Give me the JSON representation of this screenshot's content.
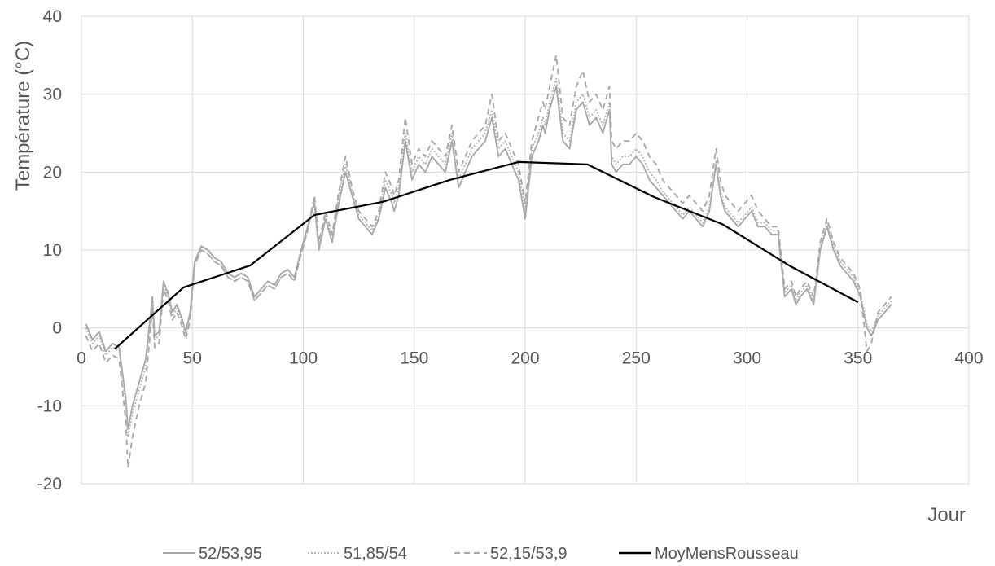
{
  "chart_data": {
    "type": "line",
    "title": "",
    "xlabel": "Jour",
    "ylabel": "Température (°C)",
    "xlim": [
      0,
      400
    ],
    "ylim": [
      -20,
      40
    ],
    "x_ticks": [
      0,
      50,
      100,
      150,
      200,
      250,
      300,
      350,
      400
    ],
    "y_ticks": [
      -20,
      -10,
      0,
      10,
      20,
      30,
      40
    ],
    "grid": true,
    "legend_position": "bottom",
    "series": [
      {
        "name": "52/53,95",
        "color": "#a6a6a6",
        "style": "solid",
        "x": [
          2,
          5,
          8,
          11,
          14,
          17,
          20,
          21,
          23,
          26,
          29,
          32,
          33,
          35,
          37,
          39,
          41,
          43,
          45,
          47,
          49,
          51,
          54,
          57,
          60,
          63,
          66,
          69,
          72,
          75,
          78,
          81,
          84,
          87,
          90,
          93,
          96,
          99,
          102,
          105,
          107,
          110,
          113,
          116,
          119,
          122,
          125,
          128,
          131,
          134,
          137,
          140,
          141,
          143,
          146,
          149,
          152,
          155,
          158,
          161,
          164,
          167,
          170,
          173,
          176,
          179,
          182,
          185,
          188,
          191,
          194,
          197,
          200,
          203,
          206,
          208,
          209,
          211,
          214,
          217,
          220,
          223,
          226,
          229,
          232,
          235,
          238,
          239,
          241,
          244,
          247,
          250,
          253,
          256,
          259,
          262,
          265,
          268,
          271,
          274,
          277,
          280,
          283,
          286,
          288,
          290,
          293,
          296,
          299,
          302,
          305,
          308,
          311,
          314,
          317,
          320,
          322,
          324,
          327,
          330,
          333,
          336,
          339,
          342,
          345,
          348,
          351,
          354,
          356,
          359,
          362,
          365
        ],
        "y": [
          0.5,
          -1.5,
          -0.5,
          -3,
          -2,
          -2.5,
          -9,
          -13,
          -10,
          -7,
          -4,
          4,
          -1,
          -0.5,
          6,
          4.5,
          2,
          3,
          1.5,
          -0.5,
          2,
          8.5,
          10.5,
          10,
          9,
          8.5,
          7,
          6.5,
          7,
          6.5,
          4,
          5,
          6,
          5.5,
          7,
          7.5,
          6.5,
          10,
          13,
          16,
          10,
          14,
          11,
          16,
          20,
          17,
          14,
          13,
          12,
          14,
          18,
          16,
          15,
          17,
          24,
          19,
          21,
          20,
          22,
          21,
          20,
          24,
          18,
          20,
          22,
          23,
          24,
          27,
          22,
          23,
          21,
          19,
          14,
          22,
          24,
          26,
          25,
          28,
          31,
          24,
          23,
          28,
          29,
          26,
          27,
          25,
          28,
          21,
          20,
          21,
          21,
          22,
          21,
          19,
          18,
          17,
          16,
          15,
          14,
          15,
          14,
          13,
          15,
          21,
          17,
          15,
          14,
          13,
          14,
          15,
          13,
          13,
          12,
          12,
          4,
          5,
          3,
          4,
          5,
          3,
          10,
          13,
          10,
          8,
          7,
          6,
          4,
          0,
          -1,
          1,
          2,
          3
        ]
      },
      {
        "name": "51,85/54",
        "color": "#b3b3b3",
        "style": "dotted",
        "x": [
          2,
          5,
          8,
          11,
          14,
          17,
          20,
          21,
          23,
          26,
          29,
          32,
          33,
          35,
          37,
          39,
          41,
          43,
          45,
          47,
          49,
          51,
          54,
          57,
          60,
          63,
          66,
          69,
          72,
          75,
          78,
          81,
          84,
          87,
          90,
          93,
          96,
          99,
          102,
          105,
          107,
          110,
          113,
          116,
          119,
          122,
          125,
          128,
          131,
          134,
          137,
          140,
          141,
          143,
          146,
          149,
          152,
          155,
          158,
          161,
          164,
          167,
          170,
          173,
          176,
          179,
          182,
          185,
          188,
          191,
          194,
          197,
          200,
          203,
          206,
          208,
          209,
          211,
          214,
          217,
          220,
          223,
          226,
          229,
          232,
          235,
          238,
          239,
          241,
          244,
          247,
          250,
          253,
          256,
          259,
          262,
          265,
          268,
          271,
          274,
          277,
          280,
          283,
          286,
          288,
          290,
          293,
          296,
          299,
          302,
          305,
          308,
          311,
          314,
          317,
          320,
          322,
          324,
          327,
          330,
          333,
          336,
          339,
          342,
          345,
          348,
          351,
          354,
          356,
          359,
          362,
          365
        ],
        "y": [
          0,
          -2,
          -1,
          -3.5,
          -2.5,
          -3,
          -10,
          -14,
          -11,
          -8,
          -5,
          3.5,
          -1.5,
          -1,
          5.5,
          4,
          1.5,
          2.5,
          1,
          -1,
          1.5,
          8,
          10,
          9.5,
          8.5,
          8,
          6.5,
          6,
          6.5,
          6,
          3.5,
          4.5,
          5.5,
          5,
          6.5,
          7,
          6,
          9.5,
          12.5,
          16.5,
          10.5,
          14.5,
          11.5,
          17,
          21,
          17.5,
          14.5,
          13.5,
          12.5,
          14.5,
          19,
          17,
          16,
          18,
          25,
          20,
          22,
          21,
          23,
          22,
          21,
          25,
          19,
          21,
          23,
          24,
          25,
          28,
          23,
          24,
          22,
          20,
          15,
          23,
          25,
          27,
          26,
          29,
          32,
          25,
          24,
          29,
          30,
          27,
          28,
          26,
          29,
          22,
          21,
          22,
          22,
          23,
          22,
          20,
          19,
          17.5,
          16.5,
          15.5,
          14.5,
          15.5,
          14.5,
          13.5,
          15.5,
          21.5,
          17.5,
          15.5,
          14.5,
          13.5,
          14.5,
          15.5,
          13.5,
          13.5,
          12.5,
          12.5,
          4.5,
          5.5,
          3.5,
          4.5,
          5.5,
          3.5,
          10.5,
          13.5,
          10.5,
          8.5,
          7.5,
          6.5,
          4.5,
          0.5,
          -0.5,
          1.5,
          2.5,
          3.5
        ]
      },
      {
        "name": "52,15/53,9",
        "color": "#a6a6a6",
        "style": "dashed",
        "x": [
          2,
          5,
          8,
          11,
          14,
          17,
          20,
          21,
          23,
          26,
          29,
          32,
          33,
          35,
          37,
          39,
          41,
          43,
          45,
          47,
          49,
          51,
          54,
          57,
          60,
          63,
          66,
          69,
          72,
          75,
          78,
          81,
          84,
          87,
          90,
          93,
          96,
          99,
          102,
          105,
          107,
          110,
          113,
          116,
          119,
          122,
          125,
          128,
          131,
          134,
          137,
          140,
          141,
          143,
          146,
          149,
          152,
          155,
          158,
          161,
          164,
          167,
          170,
          173,
          176,
          179,
          182,
          185,
          188,
          191,
          194,
          197,
          200,
          203,
          206,
          208,
          209,
          211,
          214,
          217,
          220,
          223,
          226,
          229,
          232,
          235,
          238,
          239,
          241,
          244,
          247,
          250,
          253,
          256,
          259,
          262,
          265,
          268,
          271,
          274,
          277,
          280,
          283,
          286,
          288,
          290,
          293,
          296,
          299,
          302,
          305,
          308,
          311,
          314,
          317,
          320,
          322,
          324,
          327,
          330,
          333,
          336,
          339,
          342,
          345,
          348,
          351,
          354,
          356,
          359,
          362,
          365
        ],
        "y": [
          -1,
          -3,
          -2,
          -4.5,
          -3.5,
          -4,
          -12,
          -18,
          -14,
          -10,
          -7,
          2.5,
          -2.5,
          -2,
          5,
          3.5,
          1,
          2,
          0.5,
          -1.5,
          1,
          8,
          10,
          9.5,
          8.5,
          8,
          6.5,
          6,
          6.5,
          6,
          3.5,
          4.5,
          5.5,
          5,
          6.5,
          7,
          6,
          9.5,
          12.5,
          17,
          11,
          15,
          12,
          17.5,
          22,
          18,
          15,
          14,
          13,
          15,
          20,
          18,
          17,
          19,
          27,
          21,
          23,
          22,
          24,
          23,
          22,
          26,
          20,
          22,
          24,
          25,
          26,
          30,
          24,
          25,
          23,
          21,
          16,
          24,
          27,
          29,
          28,
          31,
          35,
          27,
          26,
          31,
          33,
          29,
          30,
          28,
          31,
          24,
          23,
          24,
          24,
          25,
          24,
          22,
          21,
          19,
          18,
          17,
          16,
          17,
          16,
          15,
          17,
          23,
          19,
          17,
          16,
          15,
          16,
          17,
          15,
          14,
          13,
          13,
          5,
          6,
          4,
          5,
          6,
          4,
          11,
          14,
          11,
          9,
          8,
          7,
          5,
          -3,
          -2,
          2,
          3,
          4
        ]
      },
      {
        "name": "MoyMensRousseau",
        "color": "#000000",
        "style": "solid",
        "x": [
          15,
          46,
          76,
          105,
          136,
          166,
          197,
          228,
          258,
          289,
          319,
          350
        ],
        "y": [
          -2.7,
          5.2,
          8.0,
          14.5,
          16.2,
          19.0,
          21.3,
          21.0,
          16.8,
          13.3,
          8.0,
          3.3
        ]
      }
    ]
  }
}
